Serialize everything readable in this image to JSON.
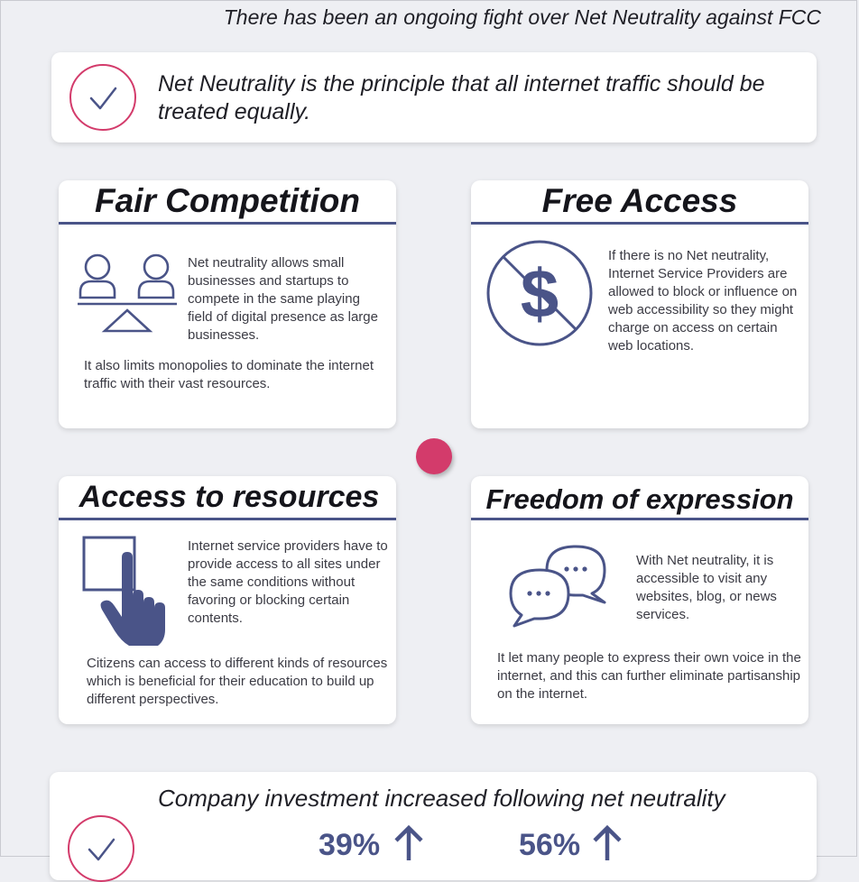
{
  "header": {
    "text": "There has been an ongoing fight over Net Neutrality against FCC"
  },
  "definition": {
    "term": "Net Neutrality",
    "rest": " is the principle that all internet traffic should be treated equally."
  },
  "cards": {
    "fair": {
      "title": "Fair Competition",
      "body": "Net neutrality allows small businesses and startups to compete in the same playing field of digital presence as large businesses.",
      "extra": "It also limits monopolies to dominate the internet traffic with their vast resources."
    },
    "free": {
      "title": "Free Access",
      "body": "If there is no Net neutrality, Internet Service Providers are allowed to block or influence on web accessibility so they might charge on access on certain web locations."
    },
    "access": {
      "title": "Access to resources",
      "body": "Internet service providers have to provide access to all sites under the same conditions without favoring or blocking certain contents.",
      "extra": "Citizens can access to different kinds of resources which is beneficial for their education to build up different perspectives."
    },
    "freedom": {
      "title": "Freedom of expression",
      "body": "With Net neutrality, it is accessible to visit any websites, blog, or news services.",
      "extra": "It let many people to express their own voice in the internet, and this can further eliminate partisanship on the internet."
    }
  },
  "investment": {
    "title": "Company investment increased following net neutrality",
    "stats": [
      "39%",
      "56%"
    ]
  },
  "colors": {
    "accent": "#d33b6b",
    "navy": "#4a5488",
    "background": "#eeeff3"
  },
  "icons": [
    "check-icon",
    "people-balance-icon",
    "no-dollar-icon",
    "pointing-hand-icon",
    "speech-bubbles-icon",
    "up-arrow-icon"
  ]
}
